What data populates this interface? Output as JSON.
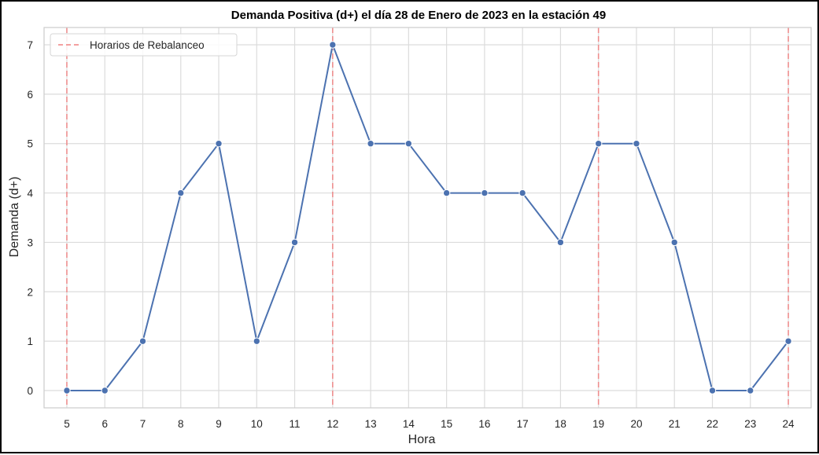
{
  "chart_data": {
    "type": "line",
    "title": "Demanda Positiva (d+) el día 28 de Enero de 2023 en la estación 49",
    "xlabel": "Hora",
    "ylabel": "Demanda (d+)",
    "x": [
      5,
      6,
      7,
      8,
      9,
      10,
      11,
      12,
      13,
      14,
      15,
      16,
      17,
      18,
      19,
      20,
      21,
      22,
      23,
      24
    ],
    "y": [
      0,
      0,
      1,
      4,
      5,
      1,
      3,
      7,
      5,
      5,
      4,
      4,
      4,
      3,
      5,
      5,
      3,
      0,
      0,
      1
    ],
    "xticks": [
      "5",
      "6",
      "7",
      "8",
      "9",
      "10",
      "11",
      "12",
      "13",
      "14",
      "15",
      "16",
      "17",
      "18",
      "19",
      "20",
      "21",
      "22",
      "23",
      "24"
    ],
    "yticks": [
      "0",
      "1",
      "2",
      "3",
      "4",
      "5",
      "6",
      "7"
    ],
    "xlim": [
      4.4,
      24.6
    ],
    "ylim": [
      -0.35,
      7.35
    ],
    "grid": true,
    "line_color": "#4c72b0",
    "vlines": {
      "label": "Horarios de Rebalanceo",
      "x": [
        5,
        12,
        19,
        24
      ],
      "color": "#f08080",
      "style": "dashed"
    },
    "legend": {
      "placement": "top-left",
      "entries": [
        "Horarios de Rebalanceo"
      ]
    }
  }
}
